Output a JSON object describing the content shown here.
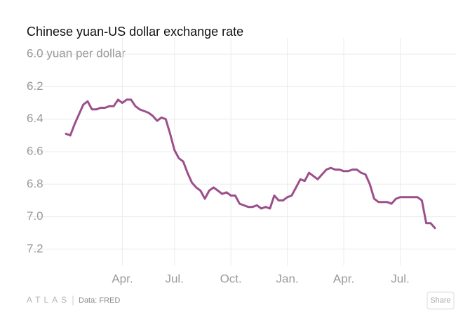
{
  "chart_data": {
    "type": "line",
    "title": "Chinese yuan-US dollar exchange rate",
    "categories": [
      null,
      null,
      null,
      null,
      null,
      null,
      null,
      null,
      null,
      null,
      null,
      null,
      null,
      "Apr.",
      null,
      null,
      null,
      null,
      null,
      null,
      null,
      null,
      null,
      null,
      null,
      "Jul.",
      null,
      null,
      null,
      null,
      null,
      null,
      null,
      null,
      null,
      null,
      null,
      null,
      "Oct.",
      null,
      null,
      null,
      null,
      null,
      null,
      null,
      null,
      null,
      null,
      null,
      null,
      "Jan.",
      null,
      null,
      null,
      null,
      null,
      null,
      null,
      null,
      null,
      null,
      null,
      null,
      "Apr.",
      null,
      null,
      null,
      null,
      null,
      null,
      null,
      null,
      null,
      null,
      null,
      null,
      "Jul.",
      null,
      null,
      null,
      null,
      null,
      null,
      null,
      null
    ],
    "values": [
      6.49,
      6.5,
      6.43,
      6.37,
      6.31,
      6.29,
      6.34,
      6.34,
      6.33,
      6.33,
      6.32,
      6.32,
      6.28,
      6.3,
      6.28,
      6.28,
      6.32,
      6.34,
      6.35,
      6.36,
      6.38,
      6.41,
      6.39,
      6.4,
      6.49,
      6.59,
      6.64,
      6.66,
      6.73,
      6.79,
      6.82,
      6.84,
      6.89,
      6.84,
      6.82,
      6.84,
      6.86,
      6.85,
      6.87,
      6.87,
      6.92,
      6.93,
      6.94,
      6.94,
      6.93,
      6.95,
      6.94,
      6.95,
      6.87,
      6.9,
      6.9,
      6.88,
      6.87,
      6.82,
      6.77,
      6.78,
      6.73,
      6.75,
      6.77,
      6.74,
      6.71,
      6.7,
      6.71,
      6.71,
      6.72,
      6.72,
      6.71,
      6.71,
      6.73,
      6.74,
      6.8,
      6.89,
      6.91,
      6.91,
      6.91,
      6.92,
      6.89,
      6.88,
      6.88,
      6.88,
      6.88,
      6.88,
      6.9,
      7.04,
      7.04,
      7.07
    ],
    "color": "#9c4f8b",
    "ylim": [
      7.3,
      5.9
    ],
    "yticks": [
      {
        "value": 6.0,
        "label": "6.0 yuan per dollar"
      },
      6.2,
      6.4,
      6.6,
      6.8,
      {
        "value": 7,
        "label": "7.0"
      },
      7.2
    ],
    "grid": true
  },
  "footer": {
    "logo": "ATLAS",
    "source": "Data: FRED",
    "share": "Share"
  }
}
